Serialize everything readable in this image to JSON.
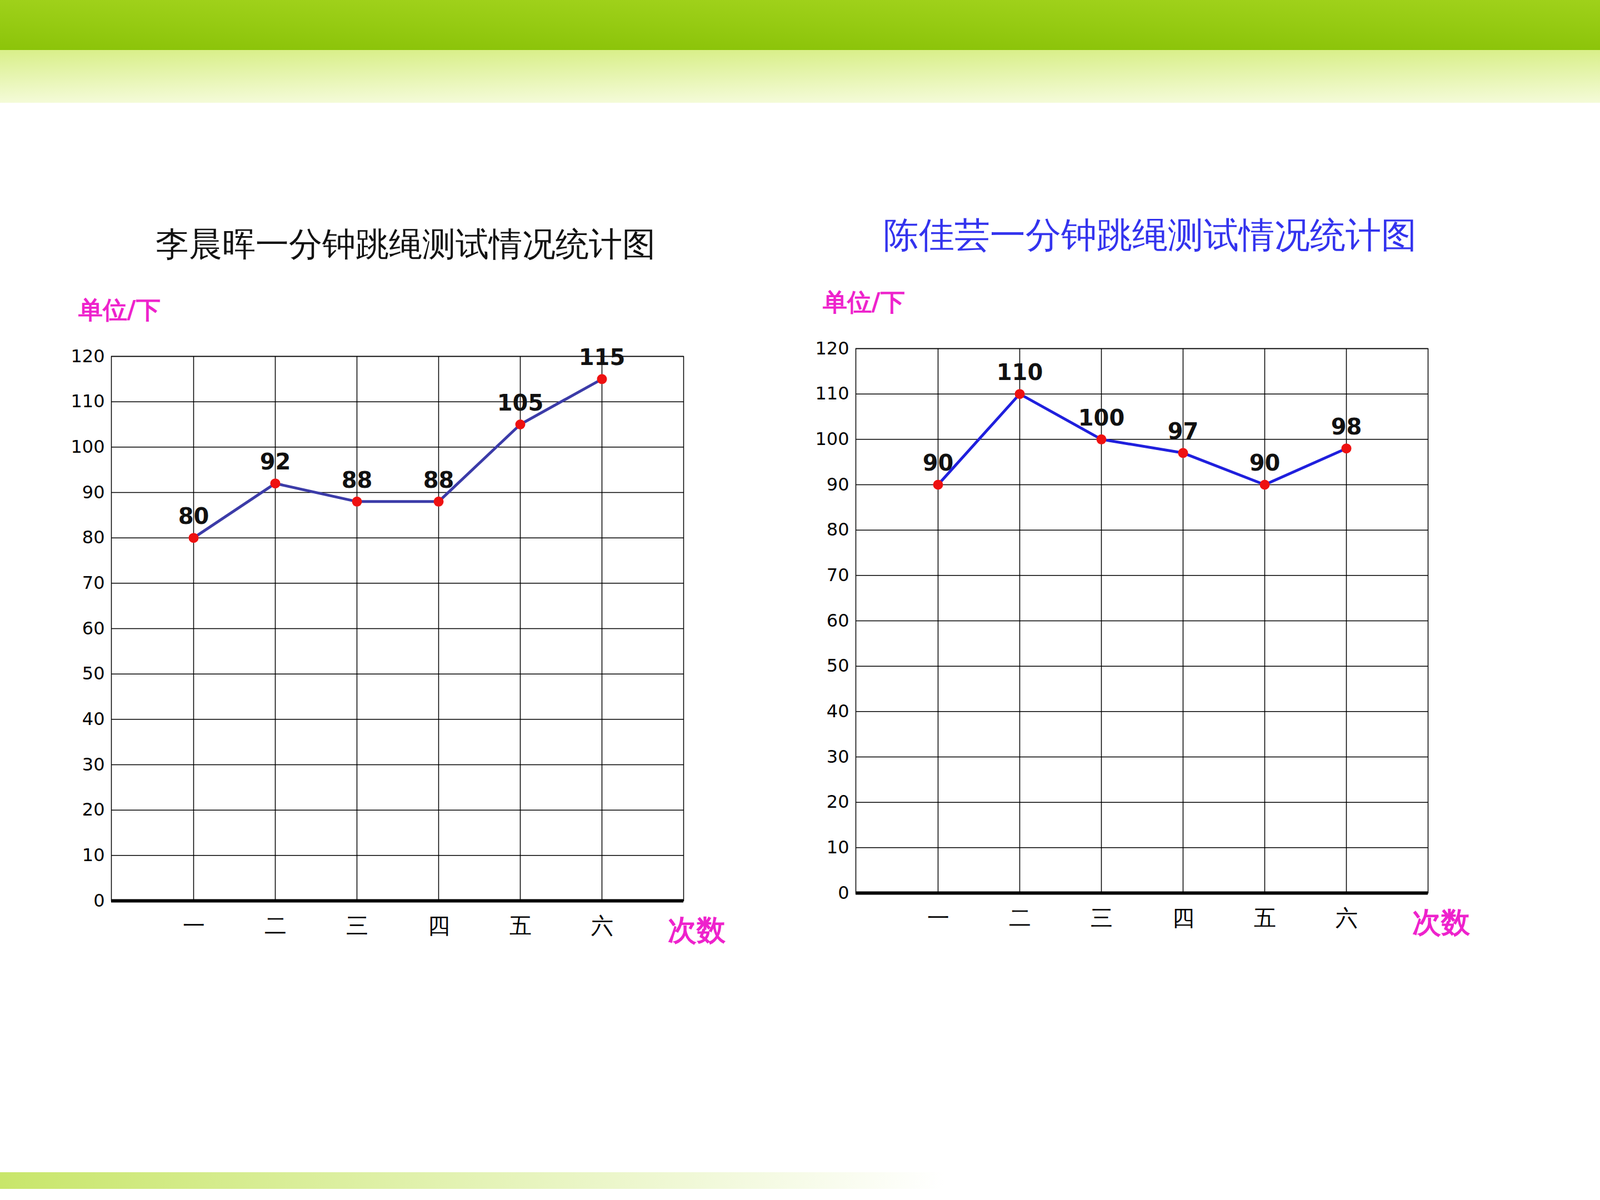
{
  "chart_data": [
    {
      "type": "line",
      "title": "李晨晖一分钟跳绳测试情况统计图",
      "x_label": "次数",
      "y_label": "单位/下",
      "categories": [
        "一",
        "二",
        "三",
        "四",
        "五",
        "六"
      ],
      "values": [
        80,
        92,
        88,
        88,
        105,
        115
      ],
      "color": "#3b3ba8",
      "marker": "circle",
      "ylim": [
        0,
        120
      ],
      "yticks": [
        0,
        10,
        20,
        30,
        40,
        50,
        60,
        70,
        80,
        90,
        100,
        110,
        120
      ],
      "grid": true,
      "data_labels": true
    },
    {
      "type": "line",
      "title": "陈佳芸一分钟跳绳测试情况统计图",
      "x_label": "次数",
      "y_label": "单位/下",
      "categories": [
        "一",
        "二",
        "三",
        "四",
        "五",
        "六"
      ],
      "values": [
        90,
        110,
        100,
        97,
        90,
        98
      ],
      "color": "#1f1fdd",
      "marker": "circle",
      "ylim": [
        0,
        120
      ],
      "yticks": [
        0,
        10,
        20,
        30,
        40,
        50,
        60,
        70,
        80,
        90,
        100,
        110,
        120
      ],
      "grid": true,
      "data_labels": true
    }
  ]
}
